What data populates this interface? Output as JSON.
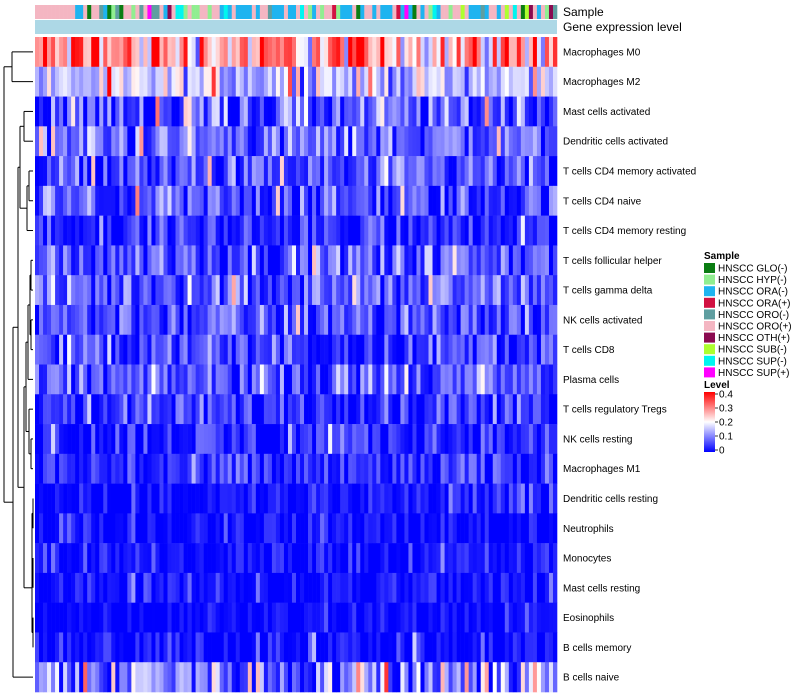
{
  "chart_data": {
    "type": "heatmap",
    "annotation_tracks": [
      "Sample",
      "Gene expression level"
    ],
    "rows": [
      {
        "name": "Macrophages M0",
        "mean": 0.27,
        "sd": 0.09
      },
      {
        "name": "Macrophages M2",
        "mean": 0.15,
        "sd": 0.05
      },
      {
        "name": "Mast cells activated",
        "mean": 0.06,
        "sd": 0.06
      },
      {
        "name": "Dendritic cells activated",
        "mean": 0.08,
        "sd": 0.05
      },
      {
        "name": "T cells CD4 memory activated",
        "mean": 0.05,
        "sd": 0.05
      },
      {
        "name": "T cells CD4 naive",
        "mean": 0.05,
        "sd": 0.05
      },
      {
        "name": "T cells CD4 memory resting",
        "mean": 0.03,
        "sd": 0.04
      },
      {
        "name": "T cells follicular helper",
        "mean": 0.07,
        "sd": 0.05
      },
      {
        "name": "T cells gamma delta",
        "mean": 0.07,
        "sd": 0.05
      },
      {
        "name": "NK cells activated",
        "mean": 0.06,
        "sd": 0.05
      },
      {
        "name": "T cells CD8",
        "mean": 0.05,
        "sd": 0.05
      },
      {
        "name": "Plasma cells",
        "mean": 0.06,
        "sd": 0.05
      },
      {
        "name": "T cells regulatory  Tregs",
        "mean": 0.04,
        "sd": 0.04
      },
      {
        "name": "NK cells resting",
        "mean": 0.03,
        "sd": 0.04
      },
      {
        "name": "Macrophages M1",
        "mean": 0.03,
        "sd": 0.04
      },
      {
        "name": "Dendritic cells resting",
        "mean": 0.01,
        "sd": 0.03
      },
      {
        "name": "Neutrophils",
        "mean": 0.01,
        "sd": 0.03
      },
      {
        "name": "Monocytes",
        "mean": 0.01,
        "sd": 0.03
      },
      {
        "name": "Mast cells resting",
        "mean": 0.01,
        "sd": 0.03
      },
      {
        "name": "Eosinophils",
        "mean": 0.005,
        "sd": 0.02
      },
      {
        "name": "B cells memory",
        "mean": 0.01,
        "sd": 0.03
      },
      {
        "name": "B cells naive",
        "mean": 0.1,
        "sd": 0.08
      }
    ],
    "n_samples": 130,
    "sample_legend": {
      "title": "Sample",
      "entries": [
        {
          "label": "HNSCC GLO(-)",
          "color": "#0a7d12"
        },
        {
          "label": "HNSCC HYP(-)",
          "color": "#90ee90"
        },
        {
          "label": "HNSCC ORA(-)",
          "color": "#1eb4f0"
        },
        {
          "label": "HNSCC ORA(+)",
          "color": "#d11141"
        },
        {
          "label": "HNSCC ORO(-)",
          "color": "#5f9ea0"
        },
        {
          "label": "HNSCC ORO(+)",
          "color": "#f4b6c2"
        },
        {
          "label": "HNSCC OTH(+)",
          "color": "#8b0a50"
        },
        {
          "label": "HNSCC SUB(-)",
          "color": "#adff2f"
        },
        {
          "label": "HNSCC SUP(-)",
          "color": "#00f5f0"
        },
        {
          "label": "HNSCC SUP(+)",
          "color": "#ff00ff"
        }
      ]
    },
    "level_legend": {
      "title": "Level",
      "ticks": [
        "0.4",
        "0.3",
        "0.2",
        "0.1",
        "0"
      ],
      "range": [
        0,
        0.4
      ],
      "colors": {
        "low": "#0000ff",
        "mid": "#ffffff",
        "high": "#ff0000"
      }
    },
    "gene_expression_track_color": "#add8e6"
  }
}
